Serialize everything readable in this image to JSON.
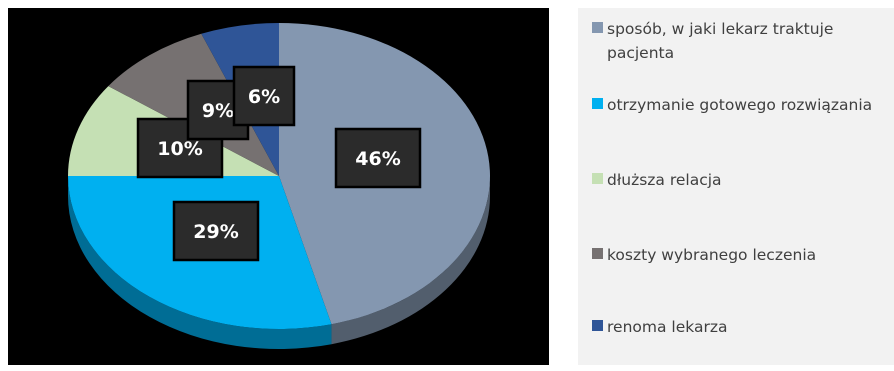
{
  "chart_data": {
    "type": "pie",
    "title": "",
    "categories": [
      "sposób, w jaki lekarz traktuje pacjenta",
      "otrzymanie gotowego rozwiązania",
      "dłuższa relacja",
      "koszty wybranego leczenia",
      "renoma lekarza"
    ],
    "values": [
      46,
      29,
      10,
      9,
      6
    ],
    "value_labels": [
      "46%",
      "29%",
      "10%",
      "9%",
      "6%"
    ],
    "colors": [
      "#8497b0",
      "#00b0f0",
      "#c5e0b4",
      "#767171",
      "#2f5597"
    ],
    "legend_position": "right",
    "start_angle": "top",
    "direction": "clockwise",
    "style": "3d-tilted"
  },
  "legend": {
    "items": [
      {
        "label": "sposób, w jaki lekarz traktuje pacjenta",
        "color": "#8497b0"
      },
      {
        "label": "otrzymanie gotowego rozwiązania",
        "color": "#00b0f0"
      },
      {
        "label": "dłuższa relacja",
        "color": "#c5e0b4"
      },
      {
        "label": "koszty wybranego leczenia",
        "color": "#767171"
      },
      {
        "label": "renoma lekarza",
        "color": "#2f5597"
      }
    ]
  }
}
